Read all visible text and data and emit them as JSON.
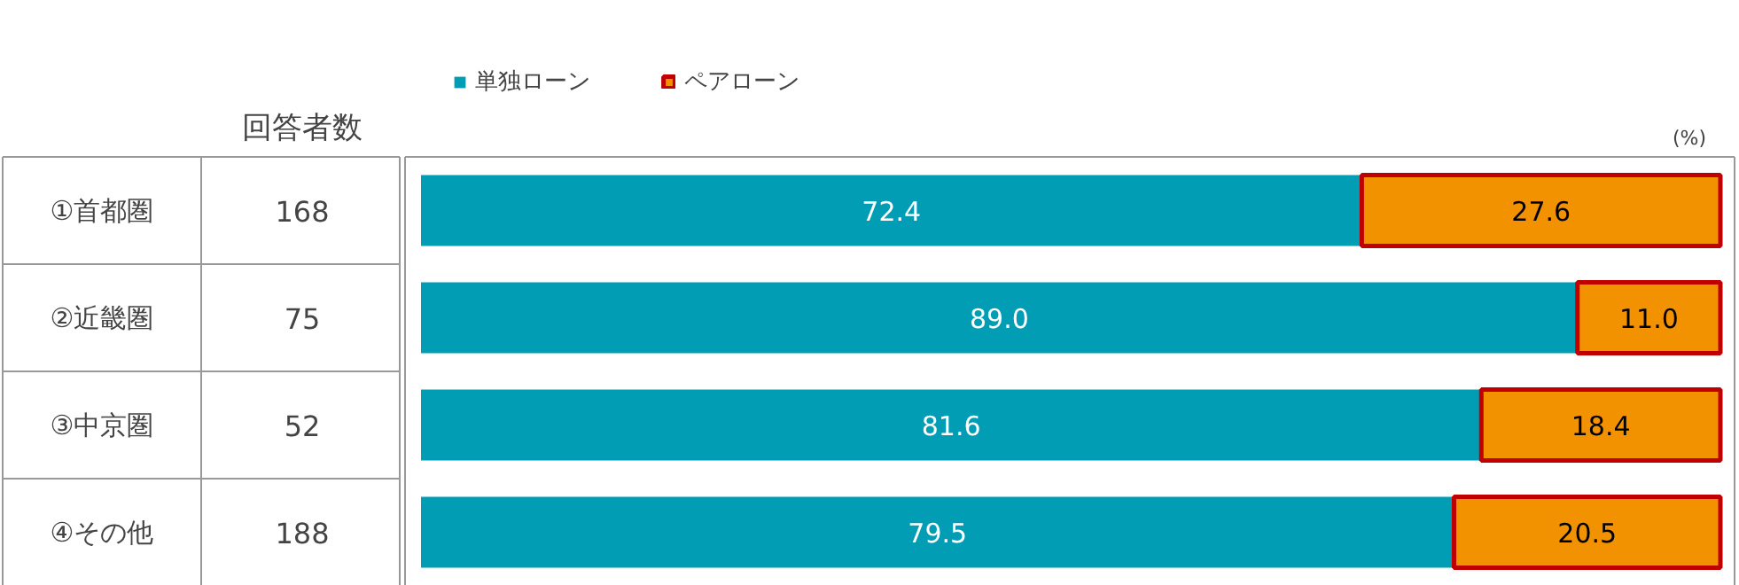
{
  "chart_data": {
    "type": "bar",
    "orientation": "horizontal",
    "stacked": true,
    "categories": [
      "①首都圏",
      "②近畿圏",
      "③中京圏",
      "④その他"
    ],
    "series": [
      {
        "name": "単独ローン",
        "color": "#009db5",
        "values": [
          72.4,
          89.0,
          81.6,
          79.5
        ],
        "value_labels": [
          "72.4",
          "89.0",
          "81.6",
          "79.5"
        ]
      },
      {
        "name": "ペアローン",
        "color": "#f39200",
        "values": [
          27.6,
          11.0,
          18.4,
          20.5
        ],
        "value_labels": [
          "27.6",
          "11.0",
          "18.4",
          "20.5"
        ]
      }
    ],
    "xlim": [
      0,
      100
    ],
    "tick_labels": false,
    "grid": false,
    "legend": "top",
    "annotations": [
      "回答者数",
      "168",
      "75",
      "52",
      "188",
      "(%)"
    ]
  }
}
